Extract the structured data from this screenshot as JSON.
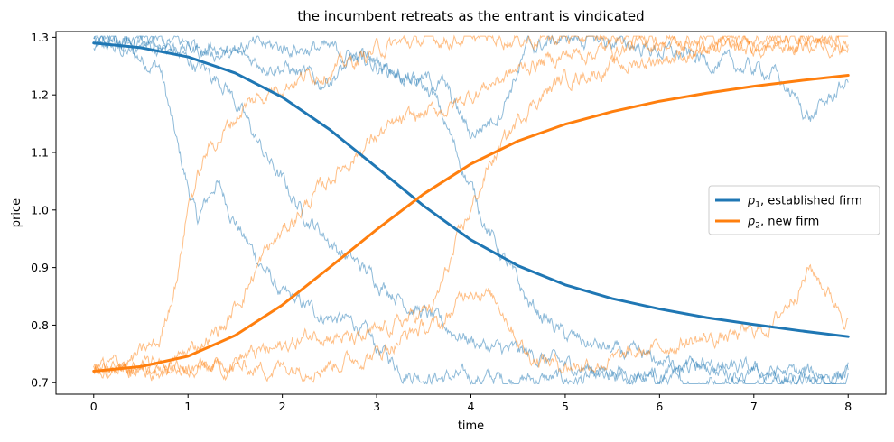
{
  "chart_data": {
    "type": "line",
    "title": "the incumbent retreats as the entrant is vindicated",
    "xlabel": "time",
    "ylabel": "price",
    "xlim": [
      -0.4,
      8.4
    ],
    "ylim": [
      0.68,
      1.31
    ],
    "xticks": [
      "0",
      "1",
      "2",
      "3",
      "4",
      "5",
      "6",
      "7",
      "8"
    ],
    "yticks": [
      "0.7",
      "0.8",
      "0.9",
      "1.0",
      "1.1",
      "1.2",
      "1.3"
    ],
    "grid": false,
    "legend_position": "center-right",
    "series": [
      {
        "name": "p1, established firm",
        "name_main": "p",
        "name_sub": "1",
        "name_rest": ", established firm",
        "color": "#1f77b4",
        "x": [
          0,
          0.5,
          1,
          1.5,
          2,
          2.5,
          3,
          3.5,
          4,
          4.5,
          5,
          5.5,
          6,
          6.5,
          7,
          7.5,
          8
        ],
        "values": [
          1.29,
          1.282,
          1.266,
          1.238,
          1.196,
          1.14,
          1.074,
          1.007,
          0.948,
          0.903,
          0.87,
          0.846,
          0.828,
          0.813,
          0.801,
          0.79,
          0.78
        ]
      },
      {
        "name": "p2, new firm",
        "name_main": "p",
        "name_sub": "2",
        "name_rest": ", new firm",
        "color": "#ff7f0e",
        "x": [
          0,
          0.5,
          1,
          1.5,
          2,
          2.5,
          3,
          3.5,
          4,
          4.5,
          5,
          5.5,
          6,
          6.5,
          7,
          7.5,
          8
        ],
        "values": [
          0.72,
          0.728,
          0.746,
          0.782,
          0.835,
          0.9,
          0.966,
          1.028,
          1.08,
          1.12,
          1.149,
          1.171,
          1.189,
          1.203,
          1.215,
          1.225,
          1.234
        ]
      }
    ],
    "sample_paths": [
      {
        "color": "#1f77b4",
        "x": [
          0,
          0.4,
          0.7,
          0.9,
          1.1,
          1.3,
          1.6,
          2.0,
          2.4,
          2.8,
          3.0,
          3.3,
          3.6,
          4.0,
          5,
          6,
          7,
          8
        ],
        "values": [
          1.29,
          1.27,
          1.25,
          1.1,
          0.98,
          1.05,
          0.95,
          0.85,
          0.82,
          0.8,
          0.76,
          0.72,
          0.71,
          0.708,
          0.705,
          0.704,
          0.703,
          0.702
        ]
      },
      {
        "color": "#1f77b4",
        "x": [
          0,
          0.8,
          1.4,
          1.8,
          2.2,
          2.6,
          3.0,
          3.4,
          3.8,
          4.2,
          4.6,
          5.0,
          5.5,
          6,
          6.5,
          7,
          7.5,
          8
        ],
        "values": [
          1.29,
          1.28,
          1.22,
          1.1,
          1.0,
          0.93,
          0.88,
          0.83,
          0.79,
          0.76,
          0.75,
          0.73,
          0.72,
          0.716,
          0.73,
          0.71,
          0.708,
          0.713
        ]
      },
      {
        "color": "#1f77b4",
        "x": [
          0,
          0.8,
          1.4,
          2.0,
          2.4,
          2.8,
          3.2,
          3.6,
          3.9,
          4.2,
          4.6,
          5.0,
          5.6,
          6.2,
          7,
          7.5,
          8
        ],
        "values": [
          1.29,
          1.285,
          1.27,
          1.25,
          1.22,
          1.26,
          1.24,
          1.2,
          1.08,
          0.96,
          0.84,
          0.78,
          0.75,
          0.73,
          0.72,
          0.716,
          0.715
        ]
      },
      {
        "color": "#1f77b4",
        "x": [
          0,
          0.8,
          1.6,
          2.4,
          3.0,
          3.4,
          3.7,
          4.0,
          4.3,
          4.6,
          5.0,
          5.6,
          6.2,
          6.8,
          7.2,
          7.6,
          8
        ],
        "values": [
          1.29,
          1.29,
          1.285,
          1.28,
          1.26,
          1.23,
          1.22,
          1.13,
          1.17,
          1.28,
          1.3,
          1.29,
          1.27,
          1.25,
          1.24,
          1.16,
          1.225
        ]
      },
      {
        "color": "#ff7f0e",
        "x": [
          0,
          0.4,
          0.7,
          0.9,
          1.0,
          1.2,
          1.6,
          2.0,
          2.4,
          2.8,
          3.0,
          3.3,
          3.6,
          4.0,
          5,
          6,
          7,
          8
        ],
        "values": [
          0.72,
          0.74,
          0.77,
          0.9,
          1.01,
          1.1,
          1.18,
          1.22,
          1.24,
          1.26,
          1.28,
          1.29,
          1.297,
          1.298,
          1.299,
          1.3,
          1.3,
          1.3
        ]
      },
      {
        "color": "#ff7f0e",
        "x": [
          0,
          0.8,
          1.4,
          1.8,
          2.2,
          2.6,
          3.0,
          3.4,
          3.8,
          4.2,
          4.6,
          5.0,
          5.5,
          6,
          6.5,
          7,
          7.5,
          8
        ],
        "values": [
          0.72,
          0.73,
          0.8,
          0.92,
          1.0,
          1.07,
          1.13,
          1.16,
          1.18,
          1.22,
          1.25,
          1.27,
          1.28,
          1.29,
          1.28,
          1.29,
          1.292,
          1.288
        ]
      },
      {
        "color": "#ff7f0e",
        "x": [
          0,
          0.8,
          1.4,
          2.0,
          2.4,
          2.8,
          3.2,
          3.6,
          3.9,
          4.2,
          4.6,
          5.0,
          5.6,
          6.2,
          7,
          7.5,
          8
        ],
        "values": [
          0.72,
          0.725,
          0.74,
          0.76,
          0.79,
          0.77,
          0.8,
          0.83,
          0.96,
          1.08,
          1.18,
          1.23,
          1.25,
          1.27,
          1.28,
          1.285,
          1.29
        ]
      },
      {
        "color": "#ff7f0e",
        "x": [
          0,
          0.8,
          1.6,
          2.4,
          3.0,
          3.4,
          3.7,
          4.0,
          4.3,
          4.6,
          5.0,
          5.6,
          6.2,
          6.8,
          7.2,
          7.6,
          8
        ],
        "values": [
          0.72,
          0.72,
          0.725,
          0.73,
          0.75,
          0.79,
          0.8,
          0.87,
          0.84,
          0.75,
          0.73,
          0.74,
          0.77,
          0.78,
          0.8,
          0.9,
          0.81
        ]
      }
    ]
  }
}
